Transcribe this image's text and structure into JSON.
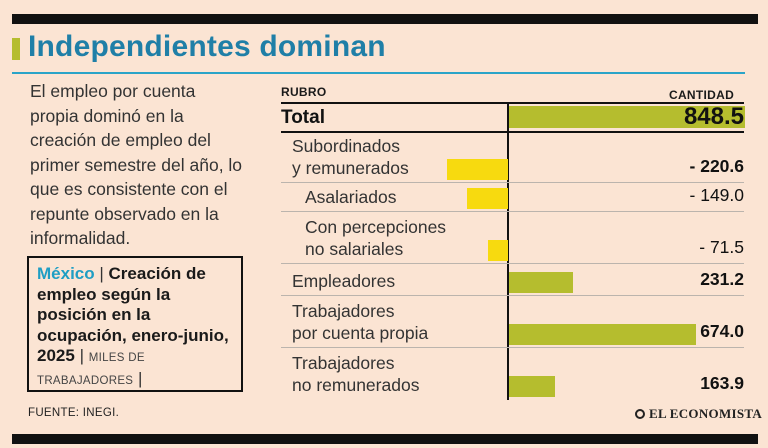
{
  "title": "Independientes dominan",
  "intro": "El empleo por cuenta propia dominó en la creación de empleo del primer semestre del año, lo que es consistente con el repunte observado en la informalidad.",
  "box": {
    "country": "México",
    "separator": "|",
    "heading": "Creación de empleo según la posición en la ocupación, enero-junio, 2025",
    "units": "MILES DE TRABAJADORES",
    "end_separator": "|"
  },
  "source": "FUENTE: INEGI.",
  "logo": "EL ECONOMISTA",
  "colors": {
    "positive_bar": "#b5bd2e",
    "negative_bar": "#f7da0f",
    "title": "#1f7fa7",
    "accent_rule": "#2aa4c8",
    "background": "#fbe4d3"
  },
  "chart_data": {
    "type": "bar",
    "orientation": "horizontal",
    "column_headers": {
      "category": "RUBRO",
      "value": "CANTIDAD"
    },
    "categories": [
      "Total",
      "Subordinados\ny remunerados",
      "Asalariados",
      "Con percepciones\nno salariales",
      "Empleadores",
      "Trabajadores\npor cuenta propia",
      "Trabajadores\nno remunerados"
    ],
    "values": [
      848.5,
      -220.6,
      -149.0,
      -71.5,
      231.2,
      674.0,
      163.9
    ],
    "value_labels": [
      "848.5",
      "- 220.6",
      "- 149.0",
      "- 71.5",
      "231.2",
      "674.0",
      "163.9"
    ],
    "bold_values": [
      true,
      true,
      false,
      false,
      true,
      true,
      true
    ],
    "indented": [
      false,
      false,
      true,
      true,
      false,
      false,
      false
    ],
    "xlim": [
      -230,
      848.5
    ]
  }
}
